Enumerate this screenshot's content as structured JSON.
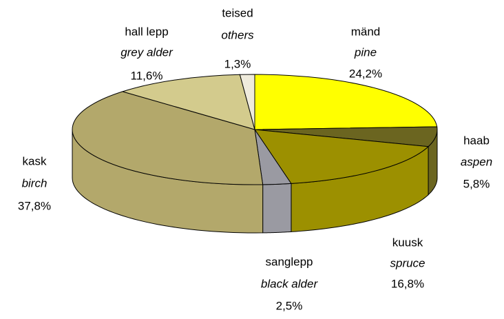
{
  "chart_data": {
    "type": "pie",
    "categories": [
      "mänd",
      "haab",
      "kuusk",
      "sanglepp",
      "kask",
      "hall lepp",
      "teised"
    ],
    "categories_en": [
      "pine",
      "aspen",
      "spruce",
      "black alder",
      "birch",
      "grey alder",
      "others"
    ],
    "values": [
      24.2,
      5.8,
      16.8,
      2.5,
      37.8,
      11.6,
      1.3
    ],
    "value_labels": [
      "24,2%",
      "5,8%",
      "16,8%",
      "2,5%",
      "37,8%",
      "11,6%",
      "1,3%"
    ],
    "colors": [
      "#ffff00",
      "#6b6520",
      "#9c9000",
      "#9a9aa2",
      "#b3a86b",
      "#d3cb8d",
      "#efebdc"
    ]
  }
}
